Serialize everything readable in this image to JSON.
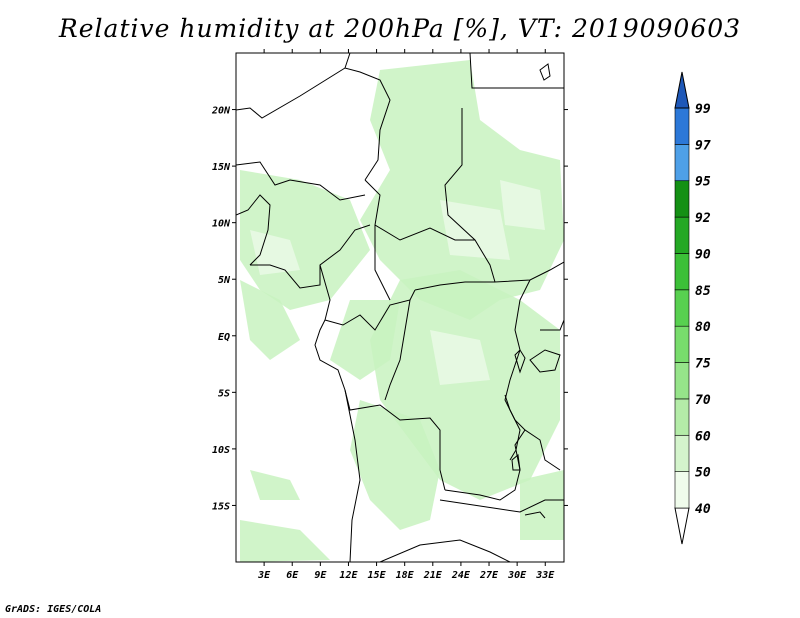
{
  "title": "Relative humidity at 200hPa [%], VT: 2019090603",
  "credit": "GrADS: IGES/COLA",
  "map": {
    "lon_range": [
      0,
      35
    ],
    "lat_range": [
      -20,
      25
    ],
    "lon_ticks": [
      {
        "value": 3,
        "label": "3E"
      },
      {
        "value": 6,
        "label": "6E"
      },
      {
        "value": 9,
        "label": "9E"
      },
      {
        "value": 12,
        "label": "12E"
      },
      {
        "value": 15,
        "label": "15E"
      },
      {
        "value": 18,
        "label": "18E"
      },
      {
        "value": 21,
        "label": "21E"
      },
      {
        "value": 24,
        "label": "24E"
      },
      {
        "value": 27,
        "label": "27E"
      },
      {
        "value": 30,
        "label": "30E"
      },
      {
        "value": 33,
        "label": "33E"
      }
    ],
    "lat_ticks": [
      {
        "value": 20,
        "label": "20N"
      },
      {
        "value": 15,
        "label": "15N"
      },
      {
        "value": 10,
        "label": "10N"
      },
      {
        "value": 5,
        "label": "5N"
      },
      {
        "value": 0,
        "label": "EQ"
      },
      {
        "value": -5,
        "label": "5S"
      },
      {
        "value": -10,
        "label": "10S"
      },
      {
        "value": -15,
        "label": "15S"
      }
    ],
    "fill_color": "#c8f2c0",
    "fill_color_light": "#e8fae4",
    "line_color": "#000000"
  },
  "colorbar": {
    "levels": [
      "40",
      "50",
      "60",
      "70",
      "75",
      "80",
      "85",
      "90",
      "92",
      "95",
      "97",
      "99"
    ],
    "colors": [
      "#f0fcec",
      "#d4f4cc",
      "#b4eca8",
      "#96e48a",
      "#78dc6c",
      "#58d050",
      "#3cc038",
      "#24a824",
      "#149014",
      "#4ea0e8",
      "#2c78d8",
      "#1e58b8"
    ],
    "under_color": "#ffffff",
    "over_color": "#1e58b8"
  }
}
